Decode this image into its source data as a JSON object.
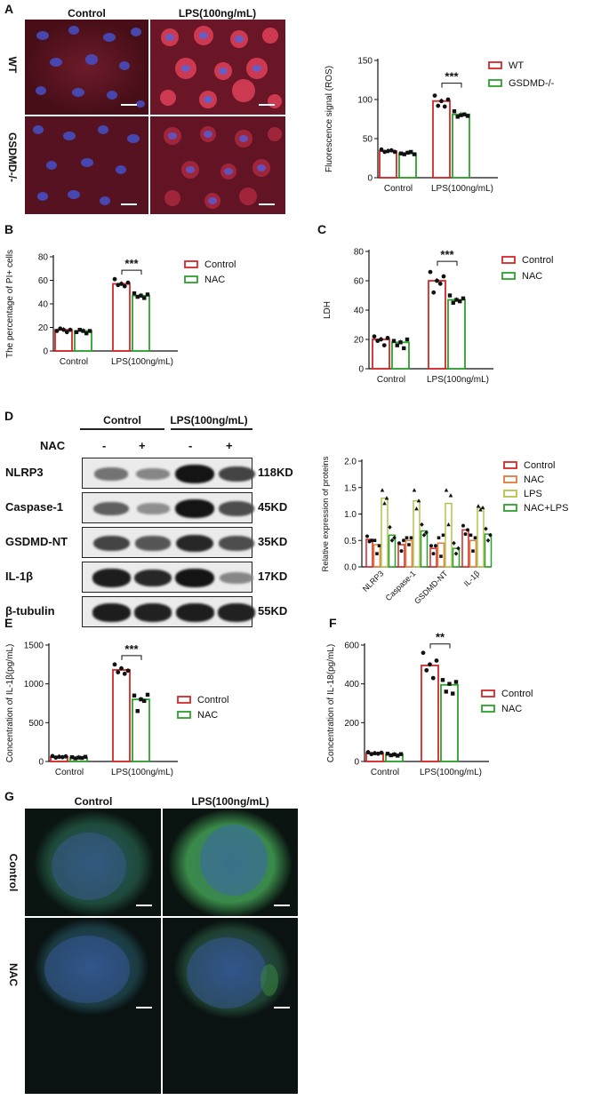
{
  "panels": {
    "A": {
      "letter": "A",
      "col_headers": [
        "Control",
        "LPS(100ng/mL)"
      ],
      "row_labels": [
        "WT",
        "GSDMD-/-"
      ],
      "chart_data": {
        "type": "bar",
        "ylabel": "Fluorescence signal (ROS)",
        "ylim": [
          0,
          150
        ],
        "yticks": [
          0,
          50,
          100,
          150
        ],
        "categories": [
          "Control",
          "LPS(100ng/mL)"
        ],
        "series": [
          {
            "name": "WT",
            "color": "#d62728",
            "values": [
              34,
              98
            ],
            "points": [
              [
                36,
                33,
                34,
                35,
                33
              ],
              [
                105,
                92,
                98,
                91,
                100
              ]
            ]
          },
          {
            "name": "GSDMD-/-",
            "color": "#2ca02c",
            "values": [
              31,
              81
            ],
            "points": [
              [
                31,
                30,
                32,
                33,
                30
              ],
              [
                85,
                78,
                80,
                81,
                79
              ]
            ]
          }
        ],
        "significance": "***"
      }
    },
    "B": {
      "letter": "B",
      "chart_data": {
        "type": "bar",
        "ylabel": "The percentage of PI+ cells",
        "ylim": [
          0,
          80
        ],
        "yticks": [
          0,
          20,
          40,
          60,
          80
        ],
        "categories": [
          "Control",
          "LPS(100ng/mL)"
        ],
        "series": [
          {
            "name": "Control",
            "color": "#d62728",
            "values": [
              18,
              57
            ],
            "points": [
              [
                17,
                19,
                18,
                16,
                18
              ],
              [
                61,
                56,
                57,
                55,
                58
              ]
            ]
          },
          {
            "name": "NAC",
            "color": "#2ca02c",
            "values": [
              17,
              47
            ],
            "points": [
              [
                16,
                18,
                17,
                15,
                17
              ],
              [
                49,
                46,
                47,
                45,
                48
              ]
            ]
          }
        ],
        "significance": "***"
      }
    },
    "C": {
      "letter": "C",
      "chart_data": {
        "type": "bar",
        "ylabel": "LDH",
        "ylim": [
          0,
          80
        ],
        "yticks": [
          0,
          20,
          40,
          60,
          80
        ],
        "categories": [
          "Control",
          "LPS(100ng/mL)"
        ],
        "series": [
          {
            "name": "Control",
            "color": "#d62728",
            "values": [
              20,
              60
            ],
            "points": [
              [
                22,
                19,
                20,
                16,
                21
              ],
              [
                66,
                52,
                60,
                58,
                63
              ]
            ]
          },
          {
            "name": "NAC",
            "color": "#2ca02c",
            "values": [
              18,
              47
            ],
            "points": [
              [
                19,
                16,
                18,
                14,
                20
              ],
              [
                50,
                45,
                47,
                46,
                48
              ]
            ]
          }
        ],
        "significance": "***"
      }
    },
    "D": {
      "letter": "D",
      "col_headers": [
        "Control",
        "LPS(100ng/mL)"
      ],
      "nac_label": "NAC",
      "nac_signs": [
        "-",
        "+",
        "-",
        "+"
      ],
      "blots": [
        {
          "protein": "NLRP3",
          "kd": "118KD",
          "intensity": [
            0.45,
            0.35,
            0.95,
            0.7
          ]
        },
        {
          "protein": "Caspase-1",
          "kd": "45KD",
          "intensity": [
            0.55,
            0.3,
            0.95,
            0.65
          ]
        },
        {
          "protein": "GSDMD-NT",
          "kd": "35KD",
          "intensity": [
            0.7,
            0.6,
            0.85,
            0.65
          ]
        },
        {
          "protein": "IL-1β",
          "kd": "17KD",
          "intensity": [
            0.9,
            0.85,
            0.95,
            0.35
          ]
        },
        {
          "protein": "β-tubulin",
          "kd": "55KD",
          "intensity": [
            0.9,
            0.88,
            0.9,
            0.88
          ]
        }
      ],
      "chart_data": {
        "type": "bar",
        "ylabel": "Relative expression of proteins",
        "ylim": [
          0,
          2.0
        ],
        "yticks": [
          0.0,
          0.5,
          1.0,
          1.5,
          2.0
        ],
        "categories": [
          "NLRP3",
          "Caspase-1",
          "GSDMD-NT",
          "IL-1β"
        ],
        "series": [
          {
            "name": "Control",
            "color": "#d62728",
            "values": [
              0.52,
              0.42,
              0.35,
              0.7
            ],
            "points": [
              [
                0.58,
                0.48,
                0.5
              ],
              [
                0.45,
                0.3,
                0.5
              ],
              [
                0.4,
                0.25,
                0.4
              ],
              [
                0.78,
                0.62,
                0.7
              ]
            ]
          },
          {
            "name": "NAC",
            "color": "#e07b39",
            "values": [
              0.42,
              0.5,
              0.45,
              0.5
            ],
            "points": [
              [
                0.5,
                0.25,
                0.4
              ],
              [
                0.55,
                0.42,
                0.55
              ],
              [
                0.55,
                0.2,
                0.6
              ],
              [
                0.6,
                0.3,
                0.55
              ]
            ]
          },
          {
            "name": "LPS",
            "color": "#b5c24a",
            "values": [
              1.3,
              1.25,
              1.2,
              1.12
            ],
            "points": [
              [
                1.45,
                1.2,
                1.3
              ],
              [
                1.45,
                1.1,
                1.25
              ],
              [
                1.45,
                0.8,
                1.35
              ],
              [
                1.15,
                1.08,
                1.12
              ]
            ]
          },
          {
            "name": "NAC+LPS",
            "color": "#2ca02c",
            "values": [
              0.6,
              0.68,
              0.35,
              0.62
            ],
            "points": [
              [
                0.75,
                0.5,
                0.55
              ],
              [
                0.8,
                0.6,
                0.65
              ],
              [
                0.45,
                0.25,
                0.35
              ],
              [
                0.72,
                0.5,
                0.6
              ]
            ]
          }
        ]
      }
    },
    "E": {
      "letter": "E",
      "chart_data": {
        "type": "bar",
        "ylabel": "Concentration of IL-1β(pg/mL)",
        "ylim": [
          0,
          1500
        ],
        "yticks": [
          0,
          500,
          1000,
          1500
        ],
        "categories": [
          "Control",
          "LPS(100ng/mL)"
        ],
        "series": [
          {
            "name": "Control",
            "color": "#d62728",
            "values": [
              60,
              1180
            ],
            "points": [
              [
                70,
                50,
                60,
                55,
                65
              ],
              [
                1250,
                1150,
                1200,
                1130,
                1170
              ]
            ]
          },
          {
            "name": "NAC",
            "color": "#2ca02c",
            "values": [
              50,
              800
            ],
            "points": [
              [
                55,
                40,
                50,
                45,
                60
              ],
              [
                850,
                650,
                800,
                780,
                860
              ]
            ]
          }
        ],
        "significance": "***"
      }
    },
    "F": {
      "letter": "F",
      "chart_data": {
        "type": "bar",
        "ylabel": "Concentration of IL-18(pg/mL)",
        "ylim": [
          0,
          600
        ],
        "yticks": [
          0,
          200,
          400,
          600
        ],
        "categories": [
          "Control",
          "LPS(100ng/mL)"
        ],
        "series": [
          {
            "name": "Control",
            "color": "#d62728",
            "values": [
              42,
              495
            ],
            "points": [
              [
                48,
                38,
                42,
                40,
                45
              ],
              [
                560,
                470,
                500,
                430,
                520
              ]
            ]
          },
          {
            "name": "NAC",
            "color": "#2ca02c",
            "values": [
              36,
              395
            ],
            "points": [
              [
                40,
                32,
                36,
                30,
                38
              ],
              [
                420,
                360,
                400,
                350,
                410
              ]
            ]
          }
        ],
        "significance": "**"
      }
    },
    "G": {
      "letter": "G",
      "col_headers": [
        "Control",
        "LPS(100ng/mL)"
      ],
      "row_labels": [
        "Control",
        "NAC"
      ]
    }
  }
}
